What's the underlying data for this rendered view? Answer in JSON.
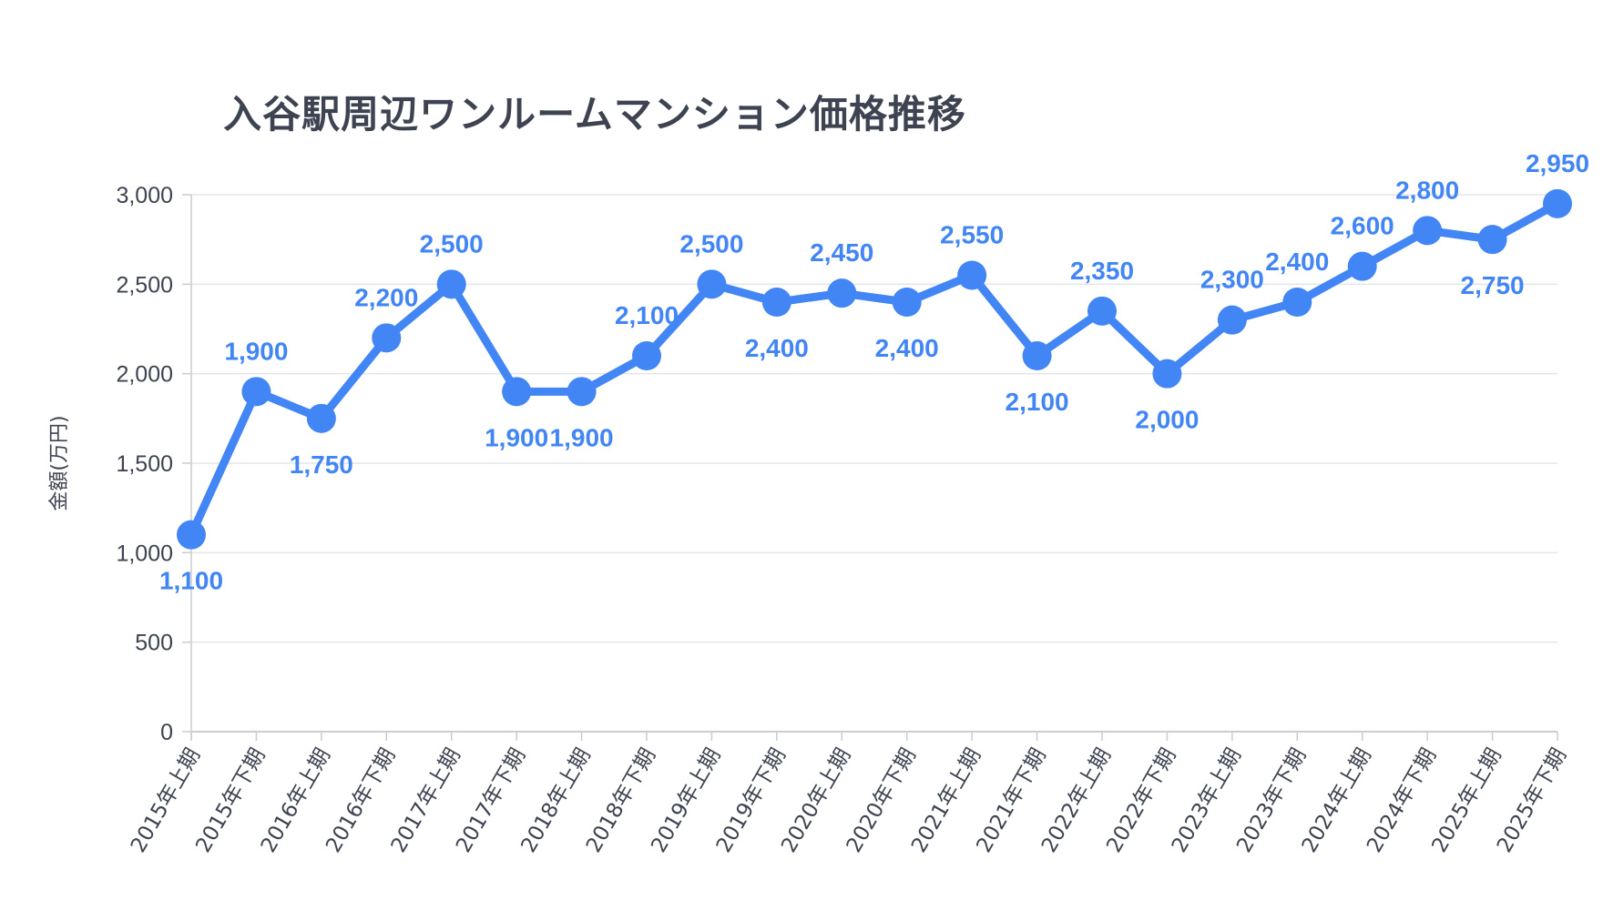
{
  "chart_data": {
    "type": "line",
    "title": "入谷駅周辺ワンルームマンション価格推移",
    "xlabel": "",
    "ylabel": "金額(万円)",
    "ylim": [
      0,
      3000
    ],
    "yticks": [
      0,
      500,
      1000,
      1500,
      2000,
      2500,
      3000
    ],
    "ytick_labels": [
      "0",
      "500",
      "1,000",
      "1,500",
      "2,000",
      "2,500",
      "3,000"
    ],
    "grid": true,
    "legend": "none",
    "line_color": "#4285f4",
    "categories": [
      "2015年上期",
      "2015年下期",
      "2016年上期",
      "2016年下期",
      "2017年上期",
      "2017年下期",
      "2018年上期",
      "2018年下期",
      "2019年上期",
      "2019年下期",
      "2020年上期",
      "2020年下期",
      "2021年上期",
      "2021年下期",
      "2022年上期",
      "2022年下期",
      "2023年上期",
      "2023年下期",
      "2024年上期",
      "2024年下期",
      "2025年上期",
      "2025年下期"
    ],
    "series": [
      {
        "values": [
          1100,
          1900,
          1750,
          2200,
          2500,
          1900,
          1900,
          2100,
          2500,
          2400,
          2450,
          2400,
          2550,
          2100,
          2350,
          2000,
          2300,
          2400,
          2600,
          2800,
          2750,
          2950
        ],
        "labels": [
          "1,100",
          "1,900",
          "1,750",
          "2,200",
          "2,500",
          "1,900",
          "1,900",
          "2,100",
          "2,500",
          "2,400",
          "2,450",
          "2,400",
          "2,550",
          "2,100",
          "2,350",
          "2,000",
          "2,300",
          "2,400",
          "2,600",
          "2,800",
          "2,750",
          "2,950"
        ],
        "label_positions": [
          "below",
          "above",
          "below",
          "above",
          "above",
          "below",
          "below",
          "above",
          "above",
          "below",
          "above",
          "below",
          "above",
          "below",
          "above",
          "below",
          "above",
          "above",
          "above",
          "above",
          "below",
          "above"
        ]
      }
    ]
  }
}
